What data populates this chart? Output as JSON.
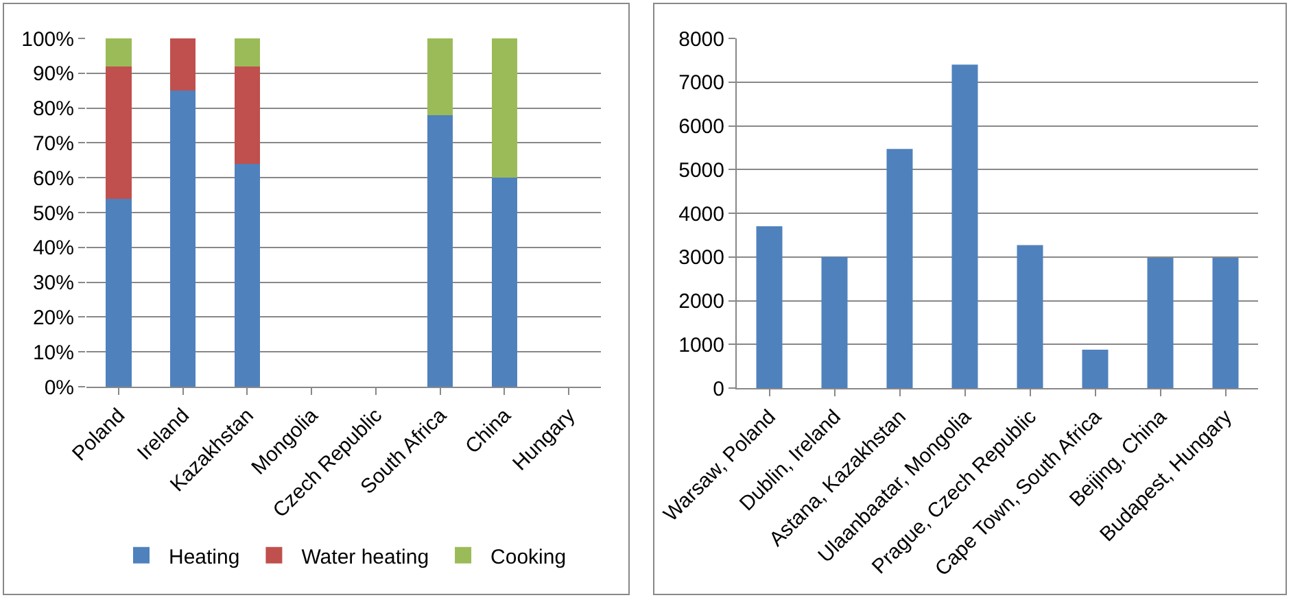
{
  "chart_data": [
    {
      "type": "bar",
      "stacked": true,
      "categories": [
        "Poland",
        "Ireland",
        "Kazakhstan",
        "Mongolia",
        "Czech Republic",
        "South Africa",
        "China",
        "Hungary"
      ],
      "series": [
        {
          "name": "Heating",
          "color": "#4f81bd",
          "values": [
            54,
            85,
            64,
            null,
            null,
            78,
            60,
            null
          ]
        },
        {
          "name": "Water heating",
          "color": "#c0504d",
          "values": [
            38,
            15,
            28,
            null,
            null,
            0,
            0,
            null
          ]
        },
        {
          "name": "Cooking",
          "color": "#9bbb59",
          "values": [
            8,
            0,
            8,
            null,
            null,
            22,
            40,
            null
          ]
        }
      ],
      "ylim": [
        0,
        100
      ],
      "yticks": [
        {
          "value": 0,
          "label": "0%"
        },
        {
          "value": 10,
          "label": "10%"
        },
        {
          "value": 20,
          "label": "20%"
        },
        {
          "value": 30,
          "label": "30%"
        },
        {
          "value": 40,
          "label": "40%"
        },
        {
          "value": 50,
          "label": "50%"
        },
        {
          "value": 60,
          "label": "60%"
        },
        {
          "value": 70,
          "label": "70%"
        },
        {
          "value": 80,
          "label": "80%"
        },
        {
          "value": 90,
          "label": "90%"
        },
        {
          "value": 100,
          "label": "100%"
        }
      ],
      "grid": "y",
      "legend": "bottom"
    },
    {
      "type": "bar",
      "categories": [
        "Warsaw, Poland",
        "Dublin, Ireland",
        "Astana, Kazakhstan",
        "Ulaanbaatar, Mongolia",
        "Prague, Czech Republic",
        "Cape Town, South Africa",
        "Beijing, China",
        "Budapest, Hungary"
      ],
      "series": [
        {
          "color": "#4f81bd",
          "values": [
            3700,
            3000,
            5470,
            7400,
            3270,
            880,
            2980,
            2980
          ]
        }
      ],
      "ylim": [
        0,
        8000
      ],
      "yticks": [
        0,
        1000,
        2000,
        3000,
        4000,
        5000,
        6000,
        7000,
        8000
      ],
      "grid": "y",
      "legend": false
    }
  ]
}
